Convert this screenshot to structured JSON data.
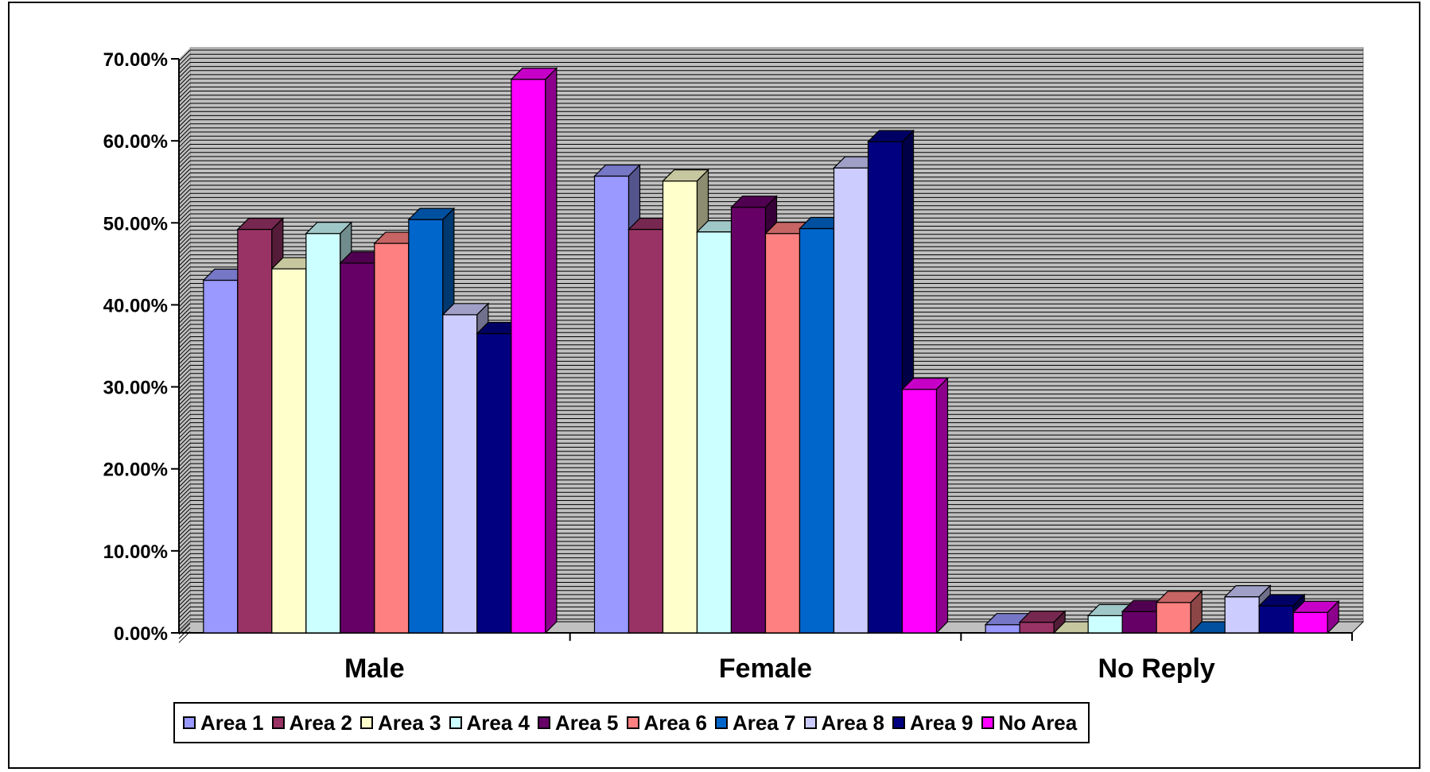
{
  "chart_data": {
    "type": "bar",
    "title": "",
    "xlabel": "",
    "ylabel": "",
    "categories": [
      "Male",
      "Female",
      "No Reply"
    ],
    "ylim": [
      0,
      0.7
    ],
    "ytick_values": [
      0,
      0.1,
      0.2,
      0.3,
      0.4,
      0.5,
      0.6,
      0.7
    ],
    "ytick_labels": [
      "0.00%",
      "10.00%",
      "20.00%",
      "30.00%",
      "40.00%",
      "50.00%",
      "60.00%",
      "70.00%"
    ],
    "grid": "horizontal",
    "style": "3d-clustered-column",
    "legend_position": "bottom",
    "plot_background": "#c0c0c0",
    "series": [
      {
        "name": "Area 1",
        "color": "#9999ff",
        "values": [
          0.43,
          0.557,
          0.01
        ]
      },
      {
        "name": "Area 2",
        "color": "#993366",
        "values": [
          0.492,
          0.492,
          0.013
        ]
      },
      {
        "name": "Area 3",
        "color": "#ffffcc",
        "values": [
          0.444,
          0.551,
          0.0
        ]
      },
      {
        "name": "Area 4",
        "color": "#ccffff",
        "values": [
          0.487,
          0.489,
          0.021
        ]
      },
      {
        "name": "Area 5",
        "color": "#660066",
        "values": [
          0.451,
          0.519,
          0.026
        ]
      },
      {
        "name": "Area 6",
        "color": "#ff8080",
        "values": [
          0.475,
          0.487,
          0.037
        ]
      },
      {
        "name": "Area 7",
        "color": "#0066cc",
        "values": [
          0.504,
          0.493,
          0.0
        ]
      },
      {
        "name": "Area 8",
        "color": "#ccccff",
        "values": [
          0.388,
          0.567,
          0.044
        ]
      },
      {
        "name": "Area 9",
        "color": "#000080",
        "values": [
          0.365,
          0.599,
          0.033
        ]
      },
      {
        "name": "No Area",
        "color": "#ff00ff",
        "values": [
          0.675,
          0.297,
          0.025
        ]
      }
    ]
  }
}
